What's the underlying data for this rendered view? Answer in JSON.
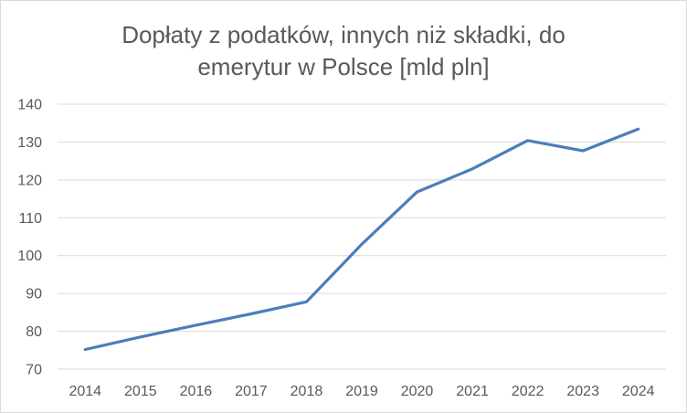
{
  "chart_data": {
    "type": "line",
    "title_lines": [
      "Dopłaty z podatków, innych niż składki, do",
      "emerytur w Polsce [mld pln]"
    ],
    "xlabel": "",
    "ylabel": "",
    "categories": [
      "2014",
      "2015",
      "2016",
      "2017",
      "2018",
      "2019",
      "2020",
      "2021",
      "2022",
      "2023",
      "2024"
    ],
    "series": [
      {
        "values": [
          75.2,
          78.5,
          81.6,
          84.6,
          87.8,
          103.0,
          116.8,
          122.9,
          130.4,
          127.7,
          133.4
        ],
        "color": "#4a7ebb"
      }
    ],
    "y_ticks": [
      "70",
      "80",
      "90",
      "100",
      "110",
      "120",
      "130",
      "140"
    ],
    "ylim": [
      70,
      140
    ],
    "grid": true,
    "legend": "none"
  }
}
